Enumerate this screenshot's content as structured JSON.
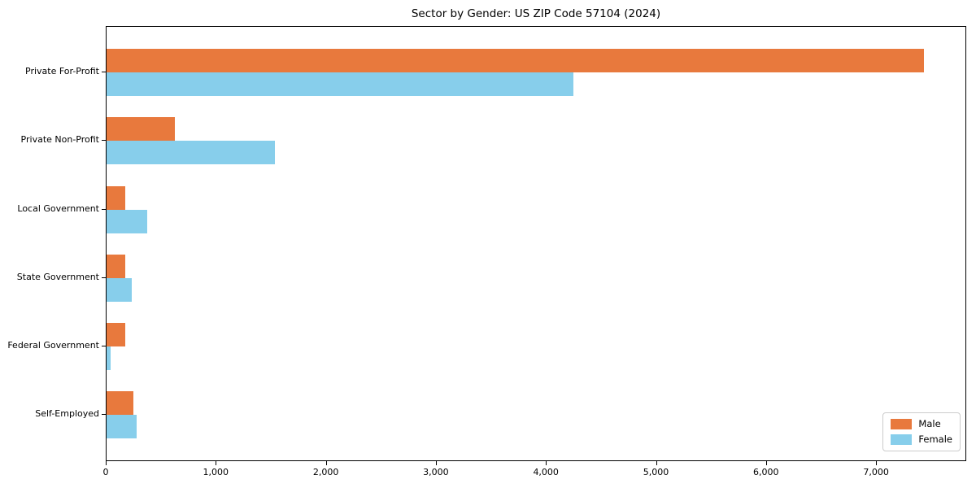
{
  "title": "Sector by Gender: US ZIP Code 57104 (2024)",
  "chart_data": {
    "type": "bar",
    "orientation": "horizontal",
    "title": "Sector by Gender: US ZIP Code 57104 (2024)",
    "categories": [
      "Private For-Profit",
      "Private Non-Profit",
      "Local Government",
      "State Government",
      "Federal Government",
      "Self-Employed"
    ],
    "series": [
      {
        "name": "Male",
        "color": "#e8793d",
        "values": [
          7430,
          620,
          170,
          170,
          170,
          240
        ]
      },
      {
        "name": "Female",
        "color": "#87ceeb",
        "values": [
          4245,
          1530,
          370,
          230,
          40,
          275
        ]
      }
    ],
    "xlabel": "",
    "ylabel": "",
    "xlim": [
      0,
      7820
    ],
    "xticks": [
      0,
      1000,
      2000,
      3000,
      4000,
      5000,
      6000,
      7000
    ],
    "xtick_labels": [
      "0",
      "1,000",
      "2,000",
      "3,000",
      "4,000",
      "5,000",
      "6,000",
      "7,000"
    ],
    "grid": false,
    "legend": {
      "position": "lower right"
    }
  }
}
